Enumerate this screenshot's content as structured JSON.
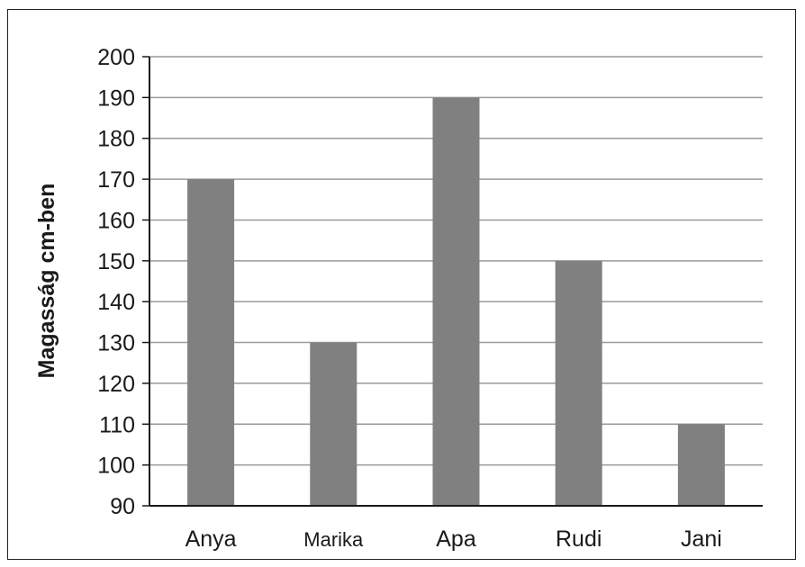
{
  "chart_data": {
    "type": "bar",
    "categories": [
      "Anya",
      "Marika",
      "Apa",
      "Rudi",
      "Jani"
    ],
    "values": [
      170,
      130,
      190,
      150,
      110
    ],
    "ylabel": "Magasság cm-ben",
    "xlabel": "",
    "ylim": [
      90,
      200
    ],
    "yticks": [
      90,
      100,
      110,
      120,
      130,
      140,
      150,
      160,
      170,
      180,
      190,
      200
    ],
    "grid": true,
    "bar_color": "#808080",
    "grid_color": "#9a9a9a"
  }
}
